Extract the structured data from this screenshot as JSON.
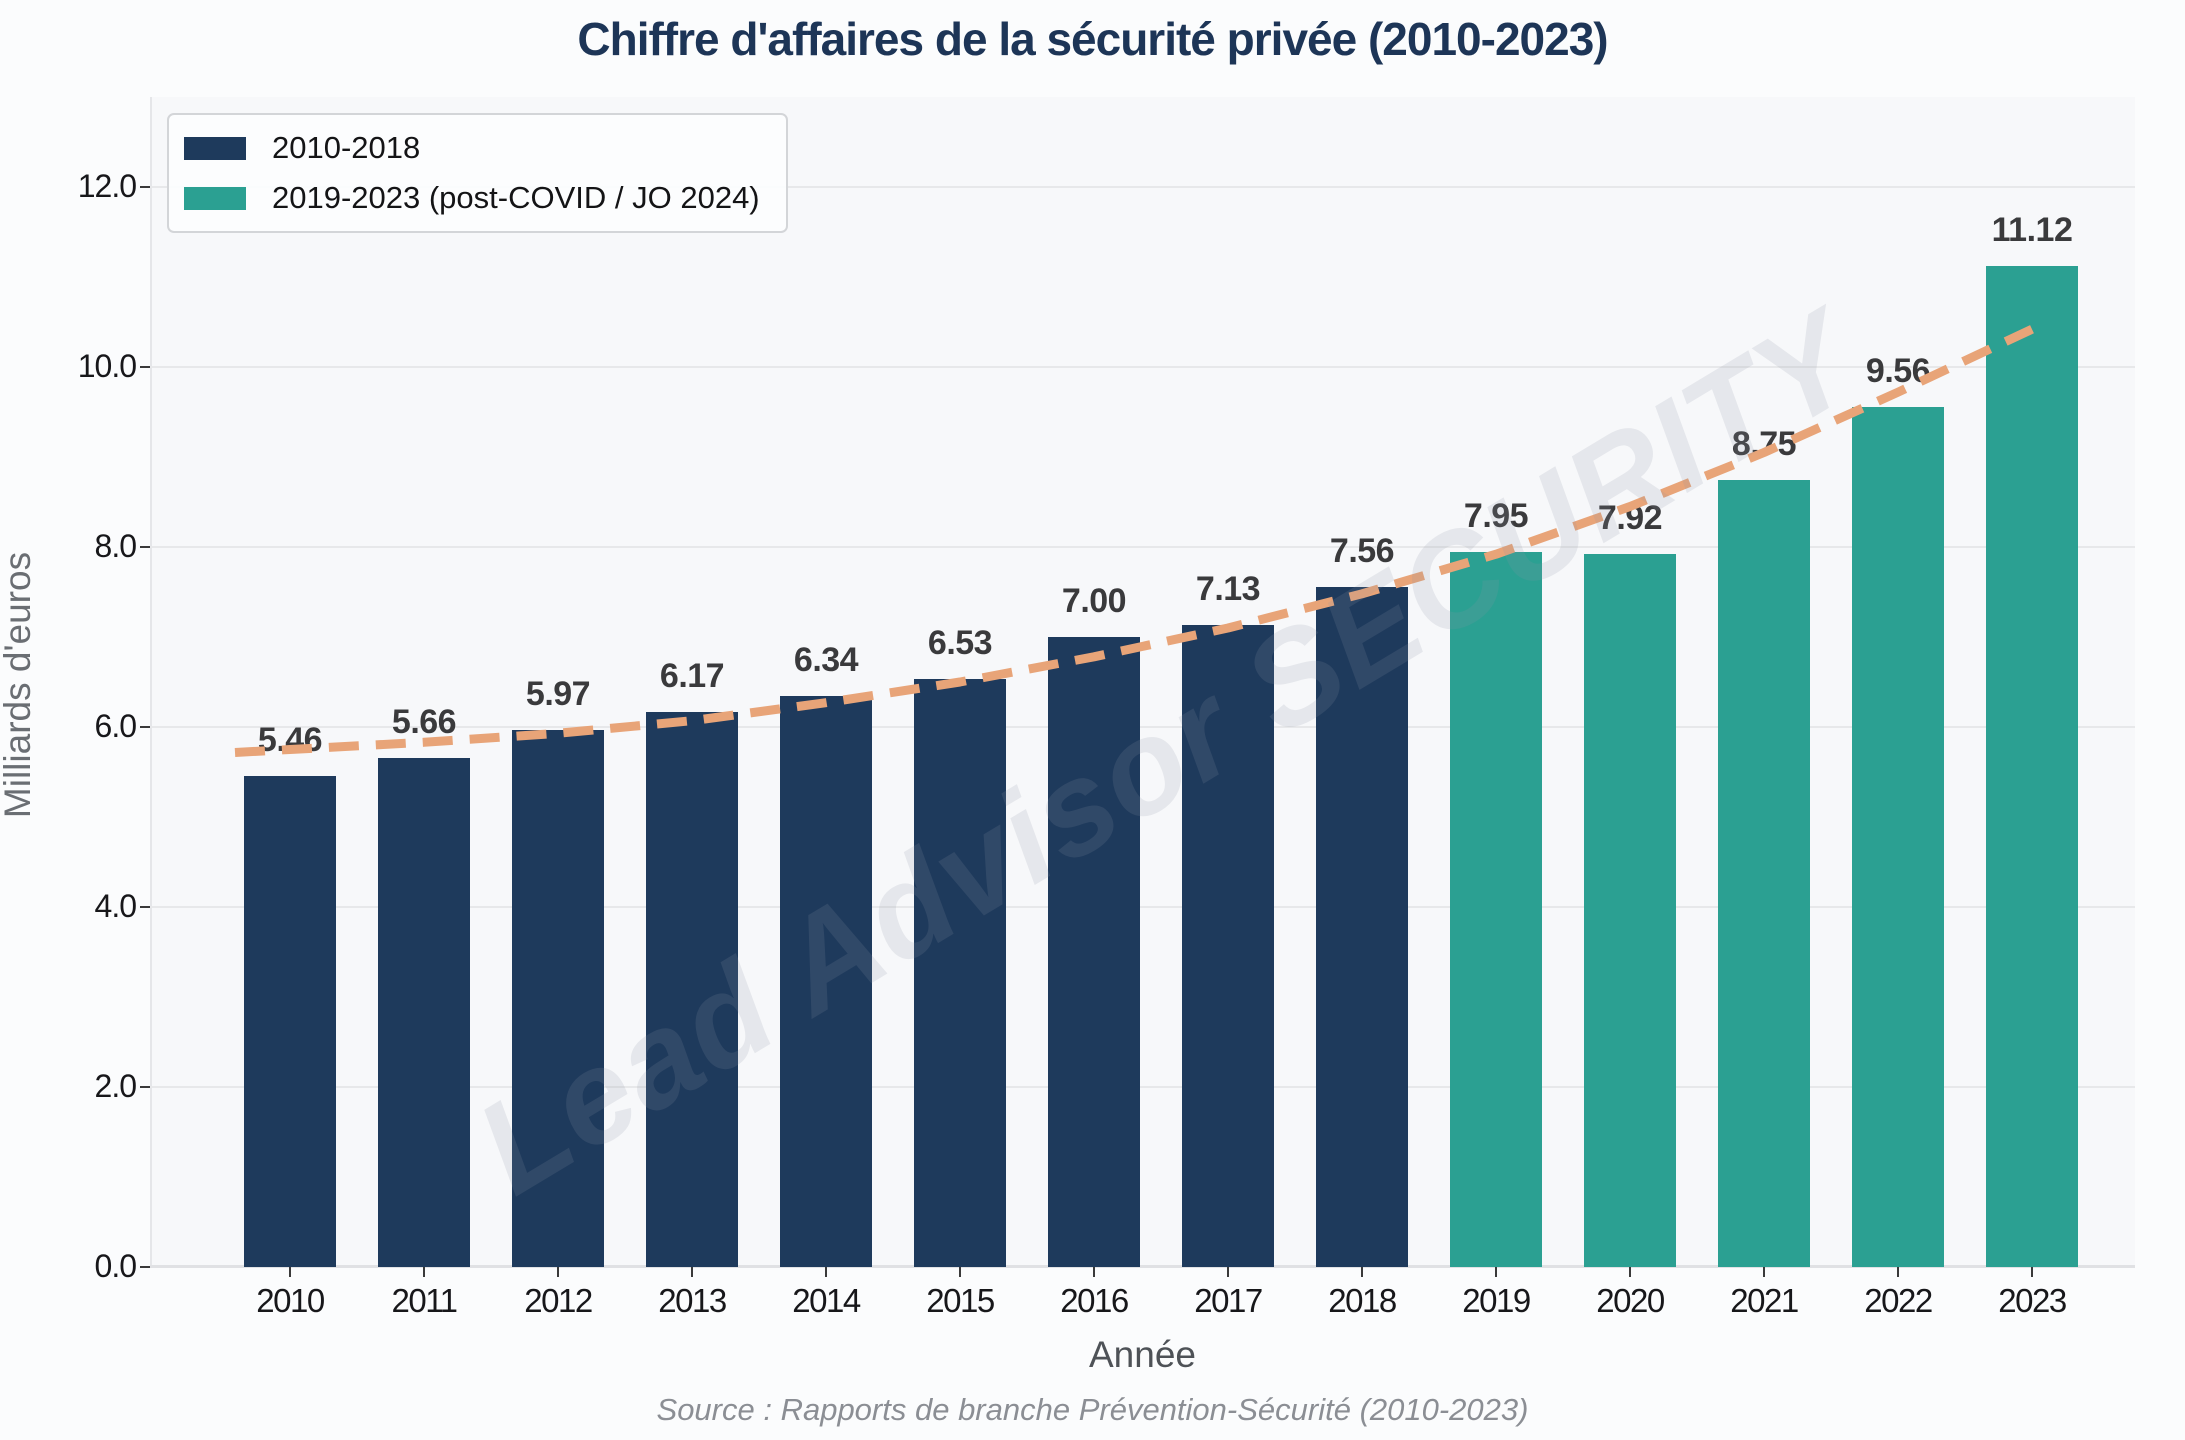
{
  "chart_data": {
    "type": "bar",
    "title": "Chiffre d'affaires de la sécurité privée (2010-2023)",
    "xlabel": "Année",
    "ylabel": "Milliards d'euros",
    "categories": [
      "2010",
      "2011",
      "2012",
      "2013",
      "2014",
      "2015",
      "2016",
      "2017",
      "2018",
      "2019",
      "2020",
      "2021",
      "2022",
      "2023"
    ],
    "values": [
      5.46,
      5.66,
      5.97,
      6.17,
      6.34,
      6.53,
      7.0,
      7.13,
      7.56,
      7.95,
      7.92,
      8.75,
      9.56,
      11.12
    ],
    "value_labels": [
      "5.46",
      "5.66",
      "5.97",
      "6.17",
      "6.34",
      "6.53",
      "7.00",
      "7.13",
      "7.56",
      "7.95",
      "7.92",
      "8.75",
      "9.56",
      "11.12"
    ],
    "split_index": 9,
    "series": [
      {
        "name": "2010-2018",
        "color": "#1e3a5c"
      },
      {
        "name": "2019-2023 (post-COVID / JO 2024)",
        "color": "#2ba092"
      }
    ],
    "trend_line": {
      "style": "dashed",
      "color": "#e8a478",
      "values": [
        5.75,
        5.83,
        5.93,
        6.07,
        6.27,
        6.5,
        6.78,
        7.1,
        7.48,
        7.92,
        8.45,
        9.05,
        9.72,
        10.42
      ]
    },
    "ylim": [
      0,
      13
    ],
    "yticks": [
      "0.0",
      "2.0",
      "4.0",
      "6.0",
      "8.0",
      "10.0",
      "12.0"
    ],
    "grid": true,
    "legend_position": "upper-left",
    "watermark": "Lead Advisor SECURITY",
    "source": "Source : Rapports de branche Prévention-Sécurité (2010-2023)"
  }
}
